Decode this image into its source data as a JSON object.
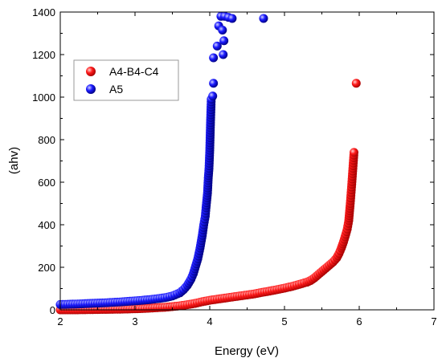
{
  "chart_data": {
    "type": "scatter",
    "title": "",
    "xlabel": "Energy (eV)",
    "ylabel": "(ahv)",
    "xlim": [
      2,
      7
    ],
    "ylim": [
      0,
      1400
    ],
    "x_ticks": [
      "2",
      "3",
      "4",
      "5",
      "6",
      "7"
    ],
    "y_ticks": [
      "0",
      "200",
      "400",
      "600",
      "800",
      "1000",
      "1200",
      "1400"
    ],
    "grid": false,
    "legend_position": "top-left",
    "series": [
      {
        "name": "A4-B4-C4",
        "color": "#e00000",
        "points": [
          [
            2.0,
            0
          ],
          [
            2.2,
            0
          ],
          [
            2.4,
            1
          ],
          [
            2.6,
            2
          ],
          [
            2.8,
            3
          ],
          [
            3.0,
            5
          ],
          [
            3.1,
            6
          ],
          [
            3.2,
            8
          ],
          [
            3.3,
            10
          ],
          [
            3.4,
            12
          ],
          [
            3.5,
            15
          ],
          [
            3.6,
            19
          ],
          [
            3.7,
            24
          ],
          [
            3.8,
            30
          ],
          [
            3.9,
            38
          ],
          [
            4.0,
            45
          ],
          [
            4.1,
            50
          ],
          [
            4.2,
            55
          ],
          [
            4.3,
            60
          ],
          [
            4.4,
            65
          ],
          [
            4.5,
            70
          ],
          [
            4.6,
            75
          ],
          [
            4.7,
            82
          ],
          [
            4.8,
            88
          ],
          [
            4.9,
            95
          ],
          [
            5.0,
            102
          ],
          [
            5.1,
            110
          ],
          [
            5.2,
            120
          ],
          [
            5.3,
            130
          ],
          [
            5.35,
            138
          ],
          [
            5.4,
            150
          ],
          [
            5.45,
            165
          ],
          [
            5.5,
            180
          ],
          [
            5.55,
            195
          ],
          [
            5.6,
            210
          ],
          [
            5.65,
            225
          ],
          [
            5.7,
            245
          ],
          [
            5.73,
            265
          ],
          [
            5.76,
            290
          ],
          [
            5.79,
            320
          ],
          [
            5.82,
            355
          ],
          [
            5.84,
            380
          ],
          [
            5.86,
            420
          ],
          [
            5.88,
            500
          ],
          [
            5.9,
            590
          ],
          [
            5.93,
            740
          ],
          [
            5.96,
            1065
          ]
        ]
      },
      {
        "name": "A5",
        "color": "#0000cc",
        "points": [
          [
            2.0,
            25
          ],
          [
            2.2,
            27
          ],
          [
            2.4,
            30
          ],
          [
            2.6,
            33
          ],
          [
            2.8,
            37
          ],
          [
            3.0,
            42
          ],
          [
            3.2,
            48
          ],
          [
            3.4,
            57
          ],
          [
            3.5,
            65
          ],
          [
            3.6,
            80
          ],
          [
            3.65,
            95
          ],
          [
            3.7,
            115
          ],
          [
            3.75,
            145
          ],
          [
            3.78,
            170
          ],
          [
            3.81,
            205
          ],
          [
            3.84,
            240
          ],
          [
            3.87,
            290
          ],
          [
            3.9,
            350
          ],
          [
            3.92,
            400
          ],
          [
            3.94,
            440
          ],
          [
            3.95,
            480
          ],
          [
            3.97,
            550
          ],
          [
            3.98,
            620
          ],
          [
            3.99,
            665
          ],
          [
            4.0,
            750
          ],
          [
            4.01,
            880
          ],
          [
            4.02,
            990
          ],
          [
            4.04,
            1005
          ],
          [
            4.05,
            1065
          ],
          [
            4.05,
            1185
          ],
          [
            4.1,
            1240
          ],
          [
            4.12,
            1335
          ],
          [
            4.15,
            1380
          ],
          [
            4.17,
            1315
          ],
          [
            4.18,
            1200
          ],
          [
            4.19,
            1265
          ],
          [
            4.2,
            1380
          ],
          [
            4.25,
            1375
          ],
          [
            4.3,
            1370
          ],
          [
            4.72,
            1370
          ]
        ]
      }
    ]
  }
}
